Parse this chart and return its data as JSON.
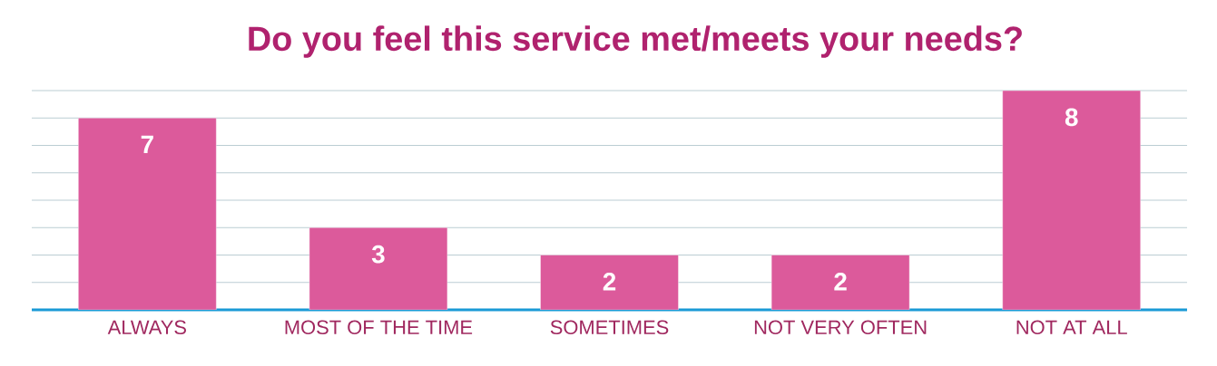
{
  "chart_data": {
    "type": "bar",
    "title": "Do you feel this service met/meets your needs?",
    "categories": [
      "ALWAYS",
      "MOST OF THE TIME",
      "SOMETIMES",
      "NOT VERY OFTEN",
      "NOT AT ALL"
    ],
    "values": [
      7,
      3,
      2,
      2,
      8
    ],
    "color": "#dc5a9b",
    "ylim": [
      0,
      8
    ],
    "grid": "y",
    "tick_labels": "x",
    "data_labels": true
  }
}
